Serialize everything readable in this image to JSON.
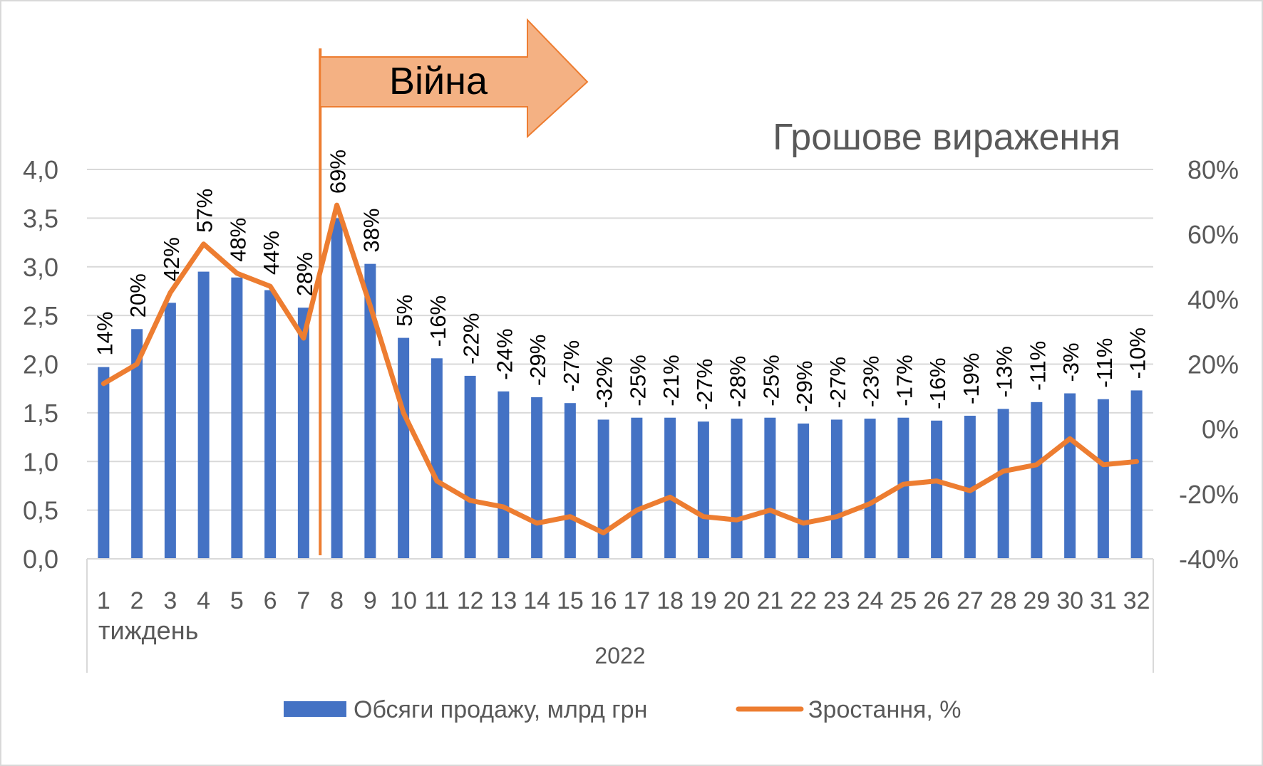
{
  "chart_data": {
    "type": "bar",
    "title": "Грошове вираження",
    "annotation": "Війна",
    "categories": [
      "1",
      "2",
      "3",
      "4",
      "5",
      "6",
      "7",
      "8",
      "9",
      "10",
      "11",
      "12",
      "13",
      "14",
      "15",
      "16",
      "17",
      "18",
      "19",
      "20",
      "21",
      "22",
      "23",
      "24",
      "25",
      "26",
      "27",
      "28",
      "29",
      "30",
      "31",
      "32"
    ],
    "xlabel": "тиждень",
    "group_label": "2022",
    "series": [
      {
        "name": "Обсяги продажу, млрд грн",
        "type": "bar",
        "axis": "left",
        "color": "#4472C4",
        "values": [
          1.97,
          2.36,
          2.63,
          2.95,
          2.89,
          2.76,
          2.58,
          3.5,
          3.03,
          2.27,
          2.06,
          1.88,
          1.72,
          1.66,
          1.6,
          1.43,
          1.45,
          1.45,
          1.41,
          1.44,
          1.45,
          1.39,
          1.43,
          1.44,
          1.45,
          1.42,
          1.47,
          1.54,
          1.61,
          1.7,
          1.64,
          1.73
        ]
      },
      {
        "name": "Зростання, %",
        "type": "line",
        "axis": "right",
        "color": "#ED7D31",
        "values": [
          14,
          20,
          42,
          57,
          48,
          44,
          28,
          69,
          38,
          5,
          -16,
          -22,
          -24,
          -29,
          -27,
          -32,
          -25,
          -21,
          -27,
          -28,
          -25,
          -29,
          -27,
          -23,
          -17,
          -16,
          -19,
          -13,
          -11,
          -3,
          -11,
          -10
        ],
        "labels": [
          "14%",
          "20%",
          "42%",
          "57%",
          "48%",
          "44%",
          "28%",
          "69%",
          "38%",
          "5%",
          "-16%",
          "-22%",
          "-24%",
          "-29%",
          "-27%",
          "-32%",
          "-25%",
          "-21%",
          "-27%",
          "-28%",
          "-25%",
          "-29%",
          "-27%",
          "-23%",
          "-17%",
          "-16%",
          "-19%",
          "-13%",
          "-11%",
          "-3%",
          "-11%",
          "-10%"
        ]
      }
    ],
    "y_left": {
      "min": 0,
      "max": 4,
      "ticks": [
        "0,0",
        "0,5",
        "1,0",
        "1,5",
        "2,0",
        "2,5",
        "3,0",
        "3,5",
        "4,0"
      ]
    },
    "y_right": {
      "min": -40,
      "max": 80,
      "ticks": [
        "-40%",
        "-20%",
        "0%",
        "20%",
        "40%",
        "60%",
        "80%"
      ]
    },
    "war_marker_after_category": "7",
    "grid": true,
    "legend_position": "bottom"
  }
}
